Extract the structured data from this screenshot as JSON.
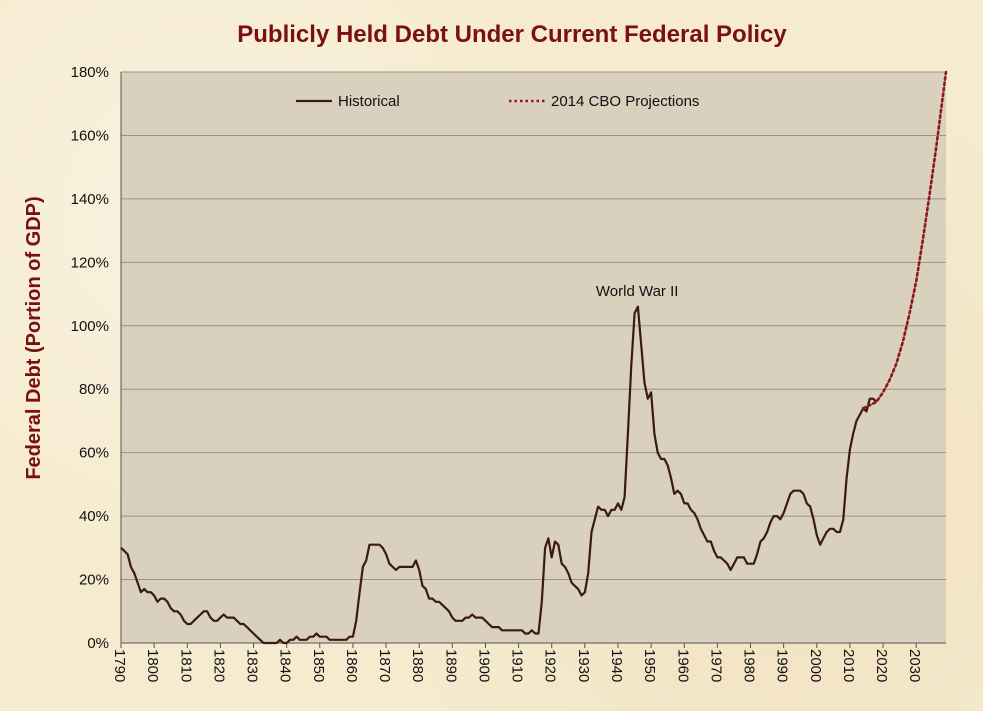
{
  "chart_data": {
    "type": "line",
    "title": "Publicly Held Debt Under Current Federal Policy",
    "xlabel": "",
    "ylabel": "Federal Debt (Portion of GDP)",
    "xlim": [
      1790,
      2039
    ],
    "ylim": [
      0,
      180
    ],
    "y_ticks": [
      "0%",
      "20%",
      "40%",
      "60%",
      "80%",
      "100%",
      "120%",
      "140%",
      "160%",
      "180%"
    ],
    "x_ticks": [
      "1790",
      "1800",
      "1810",
      "1820",
      "1830",
      "1840",
      "1850",
      "1860",
      "1870",
      "1880",
      "1890",
      "1900",
      "1910",
      "1920",
      "1930",
      "1940",
      "1950",
      "1960",
      "1970",
      "1980",
      "1990",
      "2000",
      "2010",
      "2020",
      "2030"
    ],
    "grid": "horizontal",
    "legend_position": "top",
    "colors": {
      "plot_bg": "#d9d1bd",
      "historical": "#3a1a12",
      "projection": "#8b1a1a",
      "title": "#7a1010",
      "grid": "#9a9488"
    },
    "series": [
      {
        "name": "Historical",
        "style": "solid",
        "points": [
          [
            1790,
            30
          ],
          [
            1791,
            29
          ],
          [
            1792,
            28
          ],
          [
            1793,
            24
          ],
          [
            1794,
            22
          ],
          [
            1795,
            19
          ],
          [
            1796,
            16
          ],
          [
            1797,
            17
          ],
          [
            1798,
            16
          ],
          [
            1799,
            16
          ],
          [
            1800,
            15
          ],
          [
            1801,
            13
          ],
          [
            1802,
            14
          ],
          [
            1803,
            14
          ],
          [
            1804,
            13
          ],
          [
            1805,
            11
          ],
          [
            1806,
            10
          ],
          [
            1807,
            10
          ],
          [
            1808,
            9
          ],
          [
            1809,
            7
          ],
          [
            1810,
            6
          ],
          [
            1811,
            6
          ],
          [
            1812,
            7
          ],
          [
            1813,
            8
          ],
          [
            1814,
            9
          ],
          [
            1815,
            10
          ],
          [
            1816,
            10
          ],
          [
            1817,
            8
          ],
          [
            1818,
            7
          ],
          [
            1819,
            7
          ],
          [
            1820,
            8
          ],
          [
            1821,
            9
          ],
          [
            1822,
            8
          ],
          [
            1823,
            8
          ],
          [
            1824,
            8
          ],
          [
            1825,
            7
          ],
          [
            1826,
            6
          ],
          [
            1827,
            6
          ],
          [
            1828,
            5
          ],
          [
            1829,
            4
          ],
          [
            1830,
            3
          ],
          [
            1831,
            2
          ],
          [
            1832,
            1
          ],
          [
            1833,
            0
          ],
          [
            1834,
            0
          ],
          [
            1835,
            0
          ],
          [
            1836,
            0
          ],
          [
            1837,
            0
          ],
          [
            1838,
            1
          ],
          [
            1839,
            0
          ],
          [
            1840,
            0
          ],
          [
            1841,
            1
          ],
          [
            1842,
            1
          ],
          [
            1843,
            2
          ],
          [
            1844,
            1
          ],
          [
            1845,
            1
          ],
          [
            1846,
            1
          ],
          [
            1847,
            2
          ],
          [
            1848,
            2
          ],
          [
            1849,
            3
          ],
          [
            1850,
            2
          ],
          [
            1851,
            2
          ],
          [
            1852,
            2
          ],
          [
            1853,
            1
          ],
          [
            1854,
            1
          ],
          [
            1855,
            1
          ],
          [
            1856,
            1
          ],
          [
            1857,
            1
          ],
          [
            1858,
            1
          ],
          [
            1859,
            2
          ],
          [
            1860,
            2
          ],
          [
            1861,
            7
          ],
          [
            1862,
            16
          ],
          [
            1863,
            24
          ],
          [
            1864,
            26
          ],
          [
            1865,
            31
          ],
          [
            1866,
            31
          ],
          [
            1867,
            31
          ],
          [
            1868,
            31
          ],
          [
            1869,
            30
          ],
          [
            1870,
            28
          ],
          [
            1871,
            25
          ],
          [
            1872,
            24
          ],
          [
            1873,
            23
          ],
          [
            1874,
            24
          ],
          [
            1875,
            24
          ],
          [
            1876,
            24
          ],
          [
            1877,
            24
          ],
          [
            1878,
            24
          ],
          [
            1879,
            26
          ],
          [
            1880,
            23
          ],
          [
            1881,
            18
          ],
          [
            1882,
            17
          ],
          [
            1883,
            14
          ],
          [
            1884,
            14
          ],
          [
            1885,
            13
          ],
          [
            1886,
            13
          ],
          [
            1887,
            12
          ],
          [
            1888,
            11
          ],
          [
            1889,
            10
          ],
          [
            1890,
            8
          ],
          [
            1891,
            7
          ],
          [
            1892,
            7
          ],
          [
            1893,
            7
          ],
          [
            1894,
            8
          ],
          [
            1895,
            8
          ],
          [
            1896,
            9
          ],
          [
            1897,
            8
          ],
          [
            1898,
            8
          ],
          [
            1899,
            8
          ],
          [
            1900,
            7
          ],
          [
            1901,
            6
          ],
          [
            1902,
            5
          ],
          [
            1903,
            5
          ],
          [
            1904,
            5
          ],
          [
            1905,
            4
          ],
          [
            1906,
            4
          ],
          [
            1907,
            4
          ],
          [
            1908,
            4
          ],
          [
            1909,
            4
          ],
          [
            1910,
            4
          ],
          [
            1911,
            4
          ],
          [
            1912,
            3
          ],
          [
            1913,
            3
          ],
          [
            1914,
            4
          ],
          [
            1915,
            3
          ],
          [
            1916,
            3
          ],
          [
            1917,
            13
          ],
          [
            1918,
            30
          ],
          [
            1919,
            33
          ],
          [
            1920,
            27
          ],
          [
            1921,
            32
          ],
          [
            1922,
            31
          ],
          [
            1923,
            25
          ],
          [
            1924,
            24
          ],
          [
            1925,
            22
          ],
          [
            1926,
            19
          ],
          [
            1927,
            18
          ],
          [
            1928,
            17
          ],
          [
            1929,
            15
          ],
          [
            1930,
            16
          ],
          [
            1931,
            22
          ],
          [
            1932,
            35
          ],
          [
            1933,
            39
          ],
          [
            1934,
            43
          ],
          [
            1935,
            42
          ],
          [
            1936,
            42
          ],
          [
            1937,
            40
          ],
          [
            1938,
            42
          ],
          [
            1939,
            42
          ],
          [
            1940,
            44
          ],
          [
            1941,
            42
          ],
          [
            1942,
            46
          ],
          [
            1943,
            66
          ],
          [
            1944,
            87
          ],
          [
            1945,
            104
          ],
          [
            1946,
            106
          ],
          [
            1947,
            94
          ],
          [
            1948,
            82
          ],
          [
            1949,
            77
          ],
          [
            1950,
            79
          ],
          [
            1951,
            66
          ],
          [
            1952,
            60
          ],
          [
            1953,
            58
          ],
          [
            1954,
            58
          ],
          [
            1955,
            56
          ],
          [
            1956,
            52
          ],
          [
            1957,
            47
          ],
          [
            1958,
            48
          ],
          [
            1959,
            47
          ],
          [
            1960,
            44
          ],
          [
            1961,
            44
          ],
          [
            1962,
            42
          ],
          [
            1963,
            41
          ],
          [
            1964,
            39
          ],
          [
            1965,
            36
          ],
          [
            1966,
            34
          ],
          [
            1967,
            32
          ],
          [
            1968,
            32
          ],
          [
            1969,
            29
          ],
          [
            1970,
            27
          ],
          [
            1971,
            27
          ],
          [
            1972,
            26
          ],
          [
            1973,
            25
          ],
          [
            1974,
            23
          ],
          [
            1975,
            25
          ],
          [
            1976,
            27
          ],
          [
            1977,
            27
          ],
          [
            1978,
            27
          ],
          [
            1979,
            25
          ],
          [
            1980,
            25
          ],
          [
            1981,
            25
          ],
          [
            1982,
            28
          ],
          [
            1983,
            32
          ],
          [
            1984,
            33
          ],
          [
            1985,
            35
          ],
          [
            1986,
            38
          ],
          [
            1987,
            40
          ],
          [
            1988,
            40
          ],
          [
            1989,
            39
          ],
          [
            1990,
            41
          ],
          [
            1991,
            44
          ],
          [
            1992,
            47
          ],
          [
            1993,
            48
          ],
          [
            1994,
            48
          ],
          [
            1995,
            48
          ],
          [
            1996,
            47
          ],
          [
            1997,
            44
          ],
          [
            1998,
            43
          ],
          [
            1999,
            39
          ],
          [
            2000,
            34
          ],
          [
            2001,
            31
          ],
          [
            2002,
            33
          ],
          [
            2003,
            35
          ],
          [
            2004,
            36
          ],
          [
            2005,
            36
          ],
          [
            2006,
            35
          ],
          [
            2007,
            35
          ],
          [
            2008,
            39
          ],
          [
            2009,
            52
          ],
          [
            2010,
            61
          ],
          [
            2011,
            66
          ],
          [
            2012,
            70
          ],
          [
            2013,
            72
          ],
          [
            2014,
            74
          ],
          [
            2015,
            73
          ],
          [
            2016,
            77
          ],
          [
            2017,
            77
          ],
          [
            2018,
            76
          ]
        ]
      },
      {
        "name": "2014 CBO Projections",
        "style": "dotted",
        "points": [
          [
            2014,
            74
          ],
          [
            2016,
            75
          ],
          [
            2018,
            76
          ],
          [
            2020,
            79
          ],
          [
            2022,
            83
          ],
          [
            2024,
            88
          ],
          [
            2026,
            95
          ],
          [
            2028,
            104
          ],
          [
            2030,
            114
          ],
          [
            2032,
            127
          ],
          [
            2034,
            141
          ],
          [
            2036,
            156
          ],
          [
            2038,
            172
          ],
          [
            2039,
            180
          ]
        ]
      }
    ],
    "annotations": [
      {
        "text": "World War II",
        "x": 1947,
        "y": 110
      }
    ]
  }
}
